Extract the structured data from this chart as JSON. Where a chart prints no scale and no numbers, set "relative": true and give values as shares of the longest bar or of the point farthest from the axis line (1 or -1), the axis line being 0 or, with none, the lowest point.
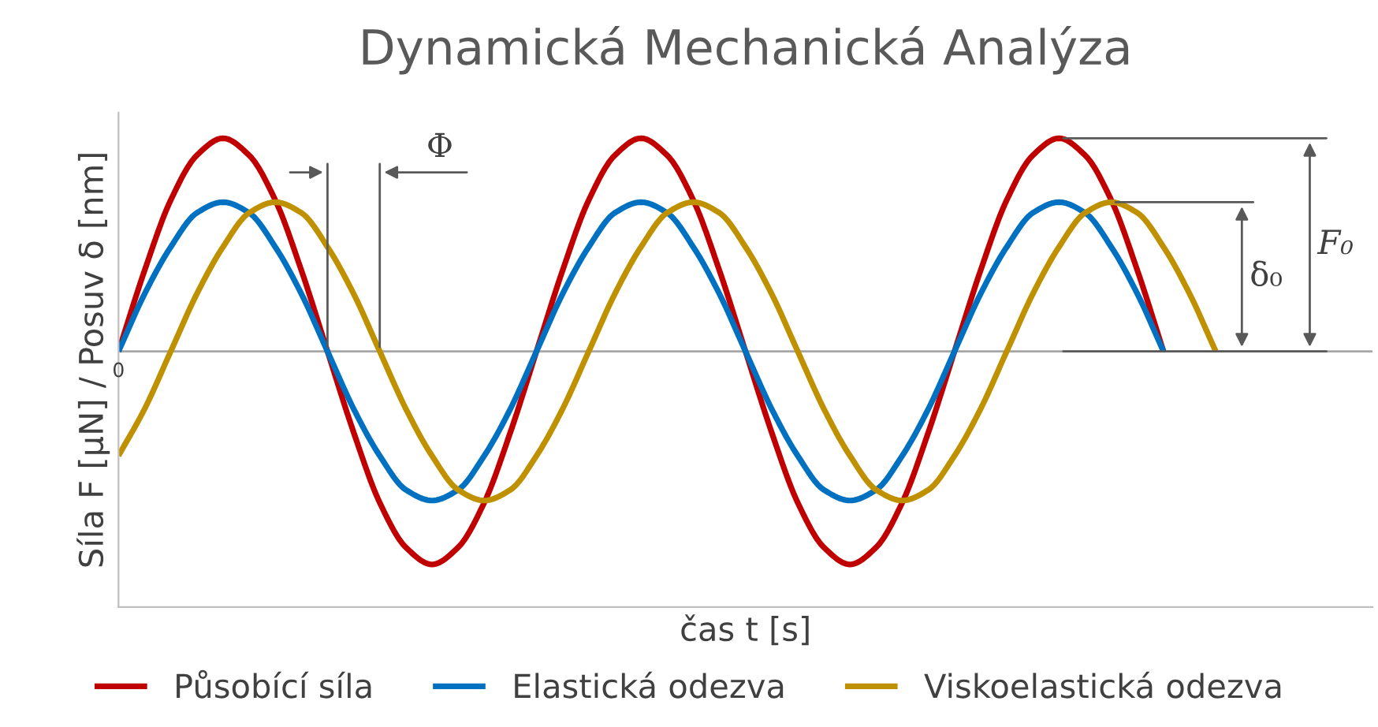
{
  "chart_data": {
    "type": "line",
    "title": "Dynamická Mechanická Analýza",
    "xlabel": "čas t [s]",
    "ylabel": "Síla F [μN] / Posuv δ [nm]",
    "relative": true,
    "categories": [
      null,
      null,
      null,
      null,
      null,
      null,
      null,
      null,
      null,
      null,
      null,
      null,
      null,
      null,
      null,
      null,
      null,
      null,
      null,
      null,
      null,
      null,
      null,
      null,
      null,
      null,
      null,
      null,
      null,
      null,
      null,
      null,
      null,
      null,
      null,
      null,
      null,
      null,
      null,
      null,
      null,
      null,
      null,
      null,
      null,
      null,
      null,
      null,
      null
    ],
    "series": [
      {
        "name": "Působící síla",
        "color": "#c00000",
        "values": [
          0,
          0.38,
          0.71,
          0.92,
          1,
          0.92,
          0.71,
          0.38,
          0,
          -0.38,
          -0.71,
          -0.92,
          -1,
          -0.92,
          -0.71,
          -0.38,
          0,
          0.38,
          0.71,
          0.92,
          1,
          0.92,
          0.71,
          0.38,
          0,
          -0.38,
          -0.71,
          -0.92,
          -1,
          -0.92,
          -0.71,
          -0.38,
          0,
          0.38,
          0.71,
          0.92,
          1,
          0.92,
          0.71,
          0.38,
          0,
          null,
          null,
          null,
          null,
          null,
          null,
          null,
          null
        ]
      },
      {
        "name": "Elastická odezva",
        "color": "#0070c0",
        "values": [
          0,
          0.27,
          0.49,
          0.65,
          0.7,
          0.65,
          0.49,
          0.27,
          0,
          -0.27,
          -0.49,
          -0.65,
          -0.7,
          -0.65,
          -0.49,
          -0.27,
          0,
          0.27,
          0.49,
          0.65,
          0.7,
          0.65,
          0.49,
          0.27,
          0,
          -0.27,
          -0.49,
          -0.65,
          -0.7,
          -0.65,
          -0.49,
          -0.27,
          0,
          0.27,
          0.49,
          0.65,
          0.7,
          0.65,
          0.49,
          0.27,
          0,
          null,
          null,
          null,
          null,
          null,
          null,
          null,
          null
        ]
      },
      {
        "name": "Viskoelastická odezva",
        "color": "#bf9000",
        "values": [
          -0.49,
          -0.27,
          0,
          0.27,
          0.49,
          0.65,
          0.7,
          0.65,
          0.49,
          0.27,
          0,
          -0.27,
          -0.49,
          -0.65,
          -0.7,
          -0.65,
          -0.49,
          -0.27,
          0,
          0.27,
          0.49,
          0.65,
          0.7,
          0.65,
          0.49,
          0.27,
          0,
          -0.27,
          -0.49,
          -0.65,
          -0.7,
          -0.65,
          -0.49,
          -0.27,
          0,
          0.27,
          0.49,
          0.65,
          0.7,
          0.65,
          0.49,
          0.27,
          0,
          null,
          null,
          null,
          null,
          null,
          null
        ]
      }
    ],
    "annotations": [
      "Φ",
      "δ₀",
      "F₀",
      "0"
    ],
    "legend": "bottom",
    "marker": "none",
    "line_style": "solid"
  }
}
